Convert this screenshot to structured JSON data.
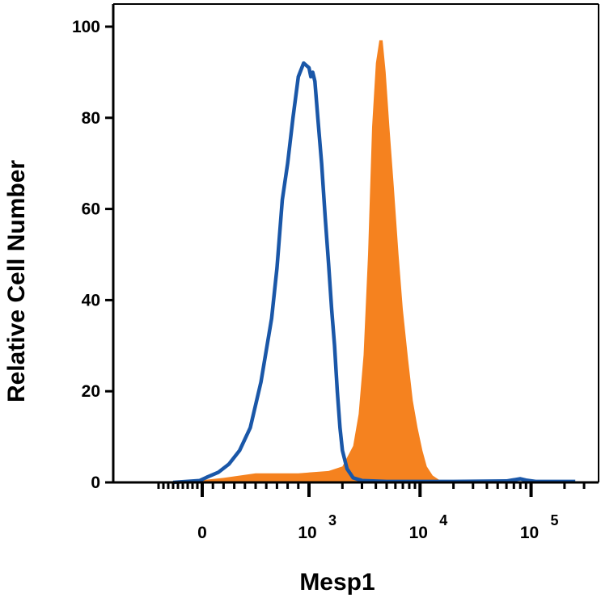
{
  "chart_data": {
    "type": "histogram",
    "xlabel": "Mesp1",
    "ylabel": "Relative Cell Number",
    "x_scale": "biexponential",
    "ylim": [
      0,
      100
    ],
    "y_ticks": [
      {
        "value": 0,
        "label": "0"
      },
      {
        "value": 20,
        "label": "20"
      },
      {
        "value": 40,
        "label": "40"
      },
      {
        "value": 60,
        "label": "60"
      },
      {
        "value": 80,
        "label": "80"
      },
      {
        "value": 100,
        "label": "100"
      }
    ],
    "x_ticks": [
      {
        "value": 0,
        "base": "0",
        "exp": ""
      },
      {
        "value": 1000,
        "base": "10",
        "exp": "3"
      },
      {
        "value": 10000,
        "base": "10",
        "exp": "4"
      },
      {
        "value": 100000,
        "base": "10",
        "exp": "5"
      }
    ],
    "series": [
      {
        "style": "filled",
        "color": "#f5821f",
        "points": [
          [
            -120,
            0
          ],
          [
            0,
            0.5
          ],
          [
            200,
            1
          ],
          [
            500,
            2
          ],
          [
            900,
            2
          ],
          [
            1500,
            2.5
          ],
          [
            2000,
            3.5
          ],
          [
            2500,
            8
          ],
          [
            2800,
            15
          ],
          [
            3100,
            28
          ],
          [
            3400,
            50
          ],
          [
            3700,
            78
          ],
          [
            4000,
            92
          ],
          [
            4300,
            97
          ],
          [
            4600,
            97
          ],
          [
            4900,
            90
          ],
          [
            5300,
            78
          ],
          [
            5800,
            65
          ],
          [
            6400,
            50
          ],
          [
            7000,
            38
          ],
          [
            7800,
            27
          ],
          [
            8600,
            18
          ],
          [
            9500,
            12
          ],
          [
            10500,
            7
          ],
          [
            11500,
            3.5
          ],
          [
            13000,
            1.5
          ],
          [
            15000,
            0.5
          ],
          [
            17000,
            0
          ]
        ]
      },
      {
        "style": "outline",
        "color": "#1a57a8",
        "points": [
          [
            -600,
            0
          ],
          [
            -50,
            0.4
          ],
          [
            50,
            1.2
          ],
          [
            150,
            2.2
          ],
          [
            250,
            4
          ],
          [
            350,
            7
          ],
          [
            450,
            12
          ],
          [
            550,
            22
          ],
          [
            650,
            36
          ],
          [
            700,
            47
          ],
          [
            750,
            62
          ],
          [
            800,
            70
          ],
          [
            850,
            80
          ],
          [
            900,
            89
          ],
          [
            950,
            92
          ],
          [
            1000,
            91
          ],
          [
            1040,
            89
          ],
          [
            1080,
            90
          ],
          [
            1130,
            88
          ],
          [
            1200,
            80
          ],
          [
            1300,
            70
          ],
          [
            1400,
            58
          ],
          [
            1500,
            48
          ],
          [
            1600,
            38
          ],
          [
            1700,
            30
          ],
          [
            1800,
            20
          ],
          [
            1900,
            12
          ],
          [
            2000,
            7
          ],
          [
            2200,
            3
          ],
          [
            2500,
            1
          ],
          [
            3000,
            0.4
          ],
          [
            5000,
            0.2
          ],
          [
            20000,
            0.2
          ],
          [
            60000,
            0.3
          ],
          [
            80000,
            0.8
          ],
          [
            90000,
            0.5
          ],
          [
            110000,
            0.2
          ],
          [
            250000,
            0.2
          ]
        ]
      }
    ]
  }
}
